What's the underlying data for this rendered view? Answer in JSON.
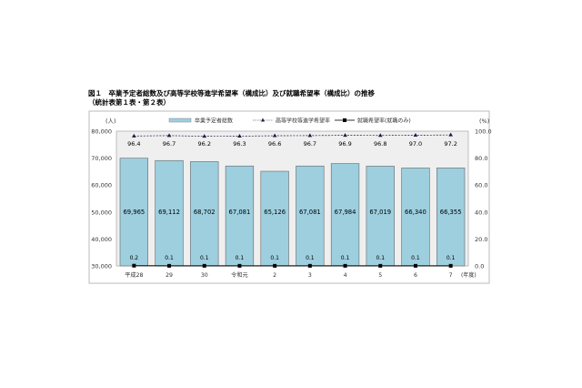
{
  "title_line1": "図１　卒業予定者総数及び高等学校等進学希望率（構成比）及び就職希望率（構成比）の推移",
  "title_line2": "（統計表第１表・第２表）",
  "chart_data": {
    "type": "bar",
    "categories": [
      "平成28",
      "29",
      "30",
      "令和元",
      "2",
      "3",
      "4",
      "5",
      "6",
      "7"
    ],
    "xunit": "(年度)",
    "yunit_left": "(人)",
    "yunit_right": "(%)",
    "ylim_left": [
      30000,
      80000
    ],
    "yticks_left": [
      "30,000",
      "40,000",
      "50,000",
      "60,000",
      "70,000",
      "80,000"
    ],
    "ylim_right": [
      0,
      100
    ],
    "yticks_right": [
      "0.0",
      "20.0",
      "40.0",
      "60.0",
      "80.0",
      "100.0"
    ],
    "legend_position": "top",
    "series": [
      {
        "name": "卒業予定者総数",
        "type": "bar",
        "axis": "left",
        "values": [
          69965,
          69112,
          68702,
          67081,
          65126,
          67081,
          67984,
          67019,
          66340,
          66355
        ],
        "labels": [
          "69,965",
          "69,112",
          "68,702",
          "67,081",
          "65,126",
          "67,081",
          "67,984",
          "67,019",
          "66,340",
          "66,355"
        ],
        "color": "#9dcfdf"
      },
      {
        "name": "高等学校等進学希望率",
        "type": "line",
        "axis": "right",
        "style": "dashed-triangle",
        "values": [
          96.4,
          96.7,
          96.2,
          96.3,
          96.6,
          96.7,
          96.9,
          96.8,
          97.0,
          97.2
        ],
        "labels": [
          "96.4",
          "96.7",
          "96.2",
          "96.3",
          "96.6",
          "96.7",
          "96.9",
          "96.8",
          "97.0",
          "97.2"
        ],
        "color": "#1a1a4a"
      },
      {
        "name": "就職希望率(就職のみ)",
        "type": "line",
        "axis": "right",
        "style": "solid-square",
        "values": [
          0.2,
          0.1,
          0.1,
          0.1,
          0.1,
          0.1,
          0.1,
          0.1,
          0.1,
          0.1
        ],
        "labels": [
          "0.2",
          "0.1",
          "0.1",
          "0.1",
          "0.1",
          "0.1",
          "0.1",
          "0.1",
          "0.1",
          "0.1"
        ],
        "color": "#000000"
      }
    ]
  }
}
